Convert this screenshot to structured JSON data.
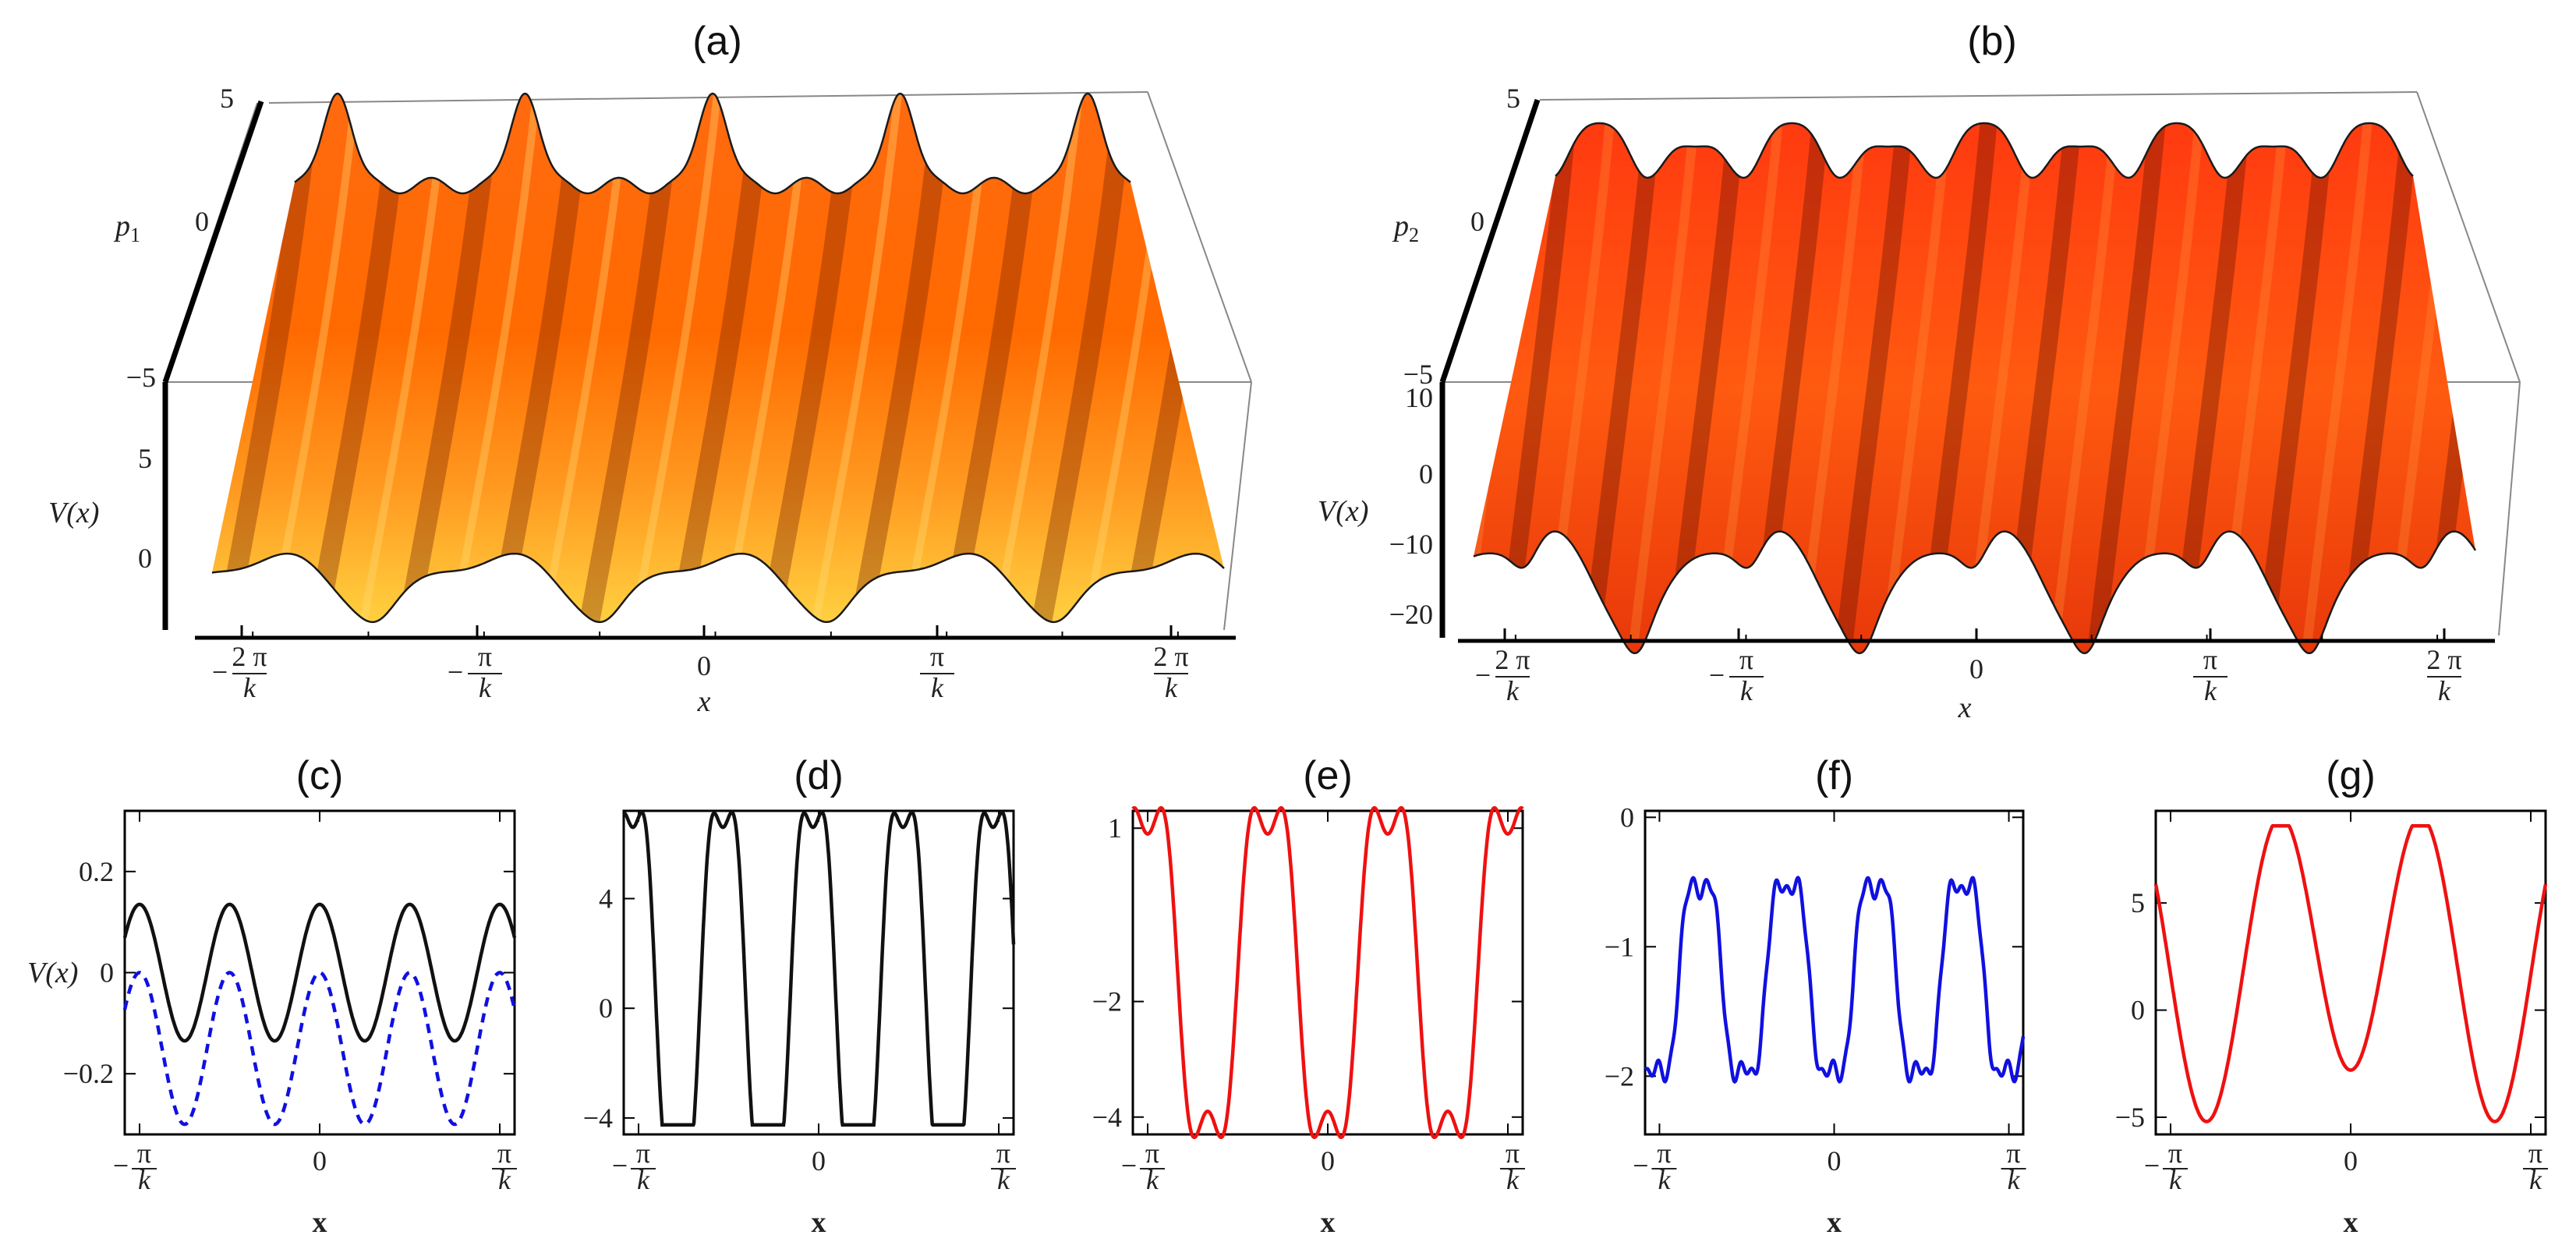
{
  "colors": {
    "black": "#111111",
    "blue": "#1010e0",
    "red": "#ee1111",
    "surface_dark": "#7a2400",
    "surface_mid": "#ff5a00",
    "surface_light": "#ffc030"
  },
  "chart_data": [
    {
      "panel": "(a)",
      "type": "surface",
      "p_axis_label": "p",
      "p_axis_sub": "1",
      "p_ticks": [
        "5",
        "0",
        "−5"
      ],
      "v_axis_label": "V(x)",
      "v_ticks": [
        "5",
        "0"
      ],
      "x_axis_label": "x",
      "x_ticks": [
        {
          "num": "− 2 π",
          "den": "k"
        },
        {
          "num": "− π",
          "den": "k"
        },
        {
          "num": "0",
          "den": ""
        },
        {
          "num": "π",
          "den": "k"
        },
        {
          "num": "2 π",
          "den": "k"
        }
      ]
    },
    {
      "panel": "(b)",
      "type": "surface",
      "p_axis_label": "p",
      "p_axis_sub": "2",
      "p_ticks": [
        "5",
        "0",
        "−5"
      ],
      "v_axis_label": "V(x)",
      "v_ticks": [
        "10",
        "0",
        "−10",
        "−20"
      ],
      "x_axis_label": "x",
      "x_ticks": [
        {
          "num": "− 2 π",
          "den": "k"
        },
        {
          "num": "− π",
          "den": "k"
        },
        {
          "num": "0",
          "den": ""
        },
        {
          "num": "π",
          "den": "k"
        },
        {
          "num": "2 π",
          "den": "k"
        }
      ]
    },
    {
      "panel": "(c)",
      "type": "line",
      "xlabel": "x",
      "ylabel": "V(x)",
      "xlim": [
        -3.4,
        3.4
      ],
      "ylim": [
        -0.32,
        0.32
      ],
      "y_ticks": [
        {
          "v": 0.2,
          "label": "0.2"
        },
        {
          "v": 0,
          "label": "0"
        },
        {
          "v": -0.2,
          "label": "−0.2"
        }
      ],
      "x_ticks": [
        {
          "v": -3.14159,
          "num": "− π",
          "den": "k"
        },
        {
          "v": 0,
          "num": "0",
          "den": ""
        },
        {
          "v": 3.14159,
          "num": "π",
          "den": "k"
        }
      ],
      "series": [
        {
          "name": "solid",
          "color": "black",
          "dashed": false,
          "offset": 0,
          "terms": [
            [
              0.135,
              4,
              0
            ]
          ],
          "clamp": null
        },
        {
          "name": "dashed",
          "color": "blue",
          "dashed": true,
          "offset": -0.15,
          "terms": [
            [
              0.15,
              4,
              0
            ]
          ],
          "clamp": null
        }
      ]
    },
    {
      "panel": "(d)",
      "type": "line",
      "xlabel": "x",
      "ylabel": "",
      "xlim": [
        -3.4,
        3.4
      ],
      "ylim": [
        -4.6,
        7.2
      ],
      "y_ticks": [
        {
          "v": 4,
          "label": "4"
        },
        {
          "v": 0,
          "label": "0"
        },
        {
          "v": -4,
          "label": "−4"
        }
      ],
      "x_ticks": [
        {
          "v": -3.14159,
          "num": "− π",
          "den": "k"
        },
        {
          "v": 0,
          "num": "0",
          "den": ""
        },
        {
          "v": 3.14159,
          "num": "π",
          "den": "k"
        }
      ],
      "series": [
        {
          "name": "solid",
          "color": "black",
          "dashed": false,
          "offset": 0.6,
          "terms": [
            [
              7.5,
              4,
              0.39
            ],
            [
              -1.5,
              12,
              1.18
            ]
          ],
          "clamp": [
            -4.25,
            99
          ]
        }
      ]
    },
    {
      "panel": "(e)",
      "type": "line",
      "xlabel": "x",
      "ylabel": "",
      "xlim": [
        -3.4,
        3.4
      ],
      "ylim": [
        -4.3,
        1.3
      ],
      "y_ticks": [
        {
          "v": 1,
          "label": "1"
        },
        {
          "v": -2,
          "label": "−2"
        },
        {
          "v": -4,
          "label": "−4"
        }
      ],
      "x_ticks": [
        {
          "v": -3.14159,
          "num": "− π",
          "den": "k"
        },
        {
          "v": 0,
          "num": "0",
          "den": ""
        },
        {
          "v": 3.14159,
          "num": "π",
          "den": "k"
        }
      ],
      "series": [
        {
          "name": "solid",
          "color": "red",
          "dashed": false,
          "offset": -1.5,
          "terms": [
            [
              -3.2,
              3,
              0
            ],
            [
              0.8,
              9,
              0
            ]
          ],
          "clamp": null
        }
      ]
    },
    {
      "panel": "(f)",
      "type": "line",
      "xlabel": "x",
      "ylabel": "",
      "xlim": [
        -3.4,
        3.4
      ],
      "ylim": [
        -2.45,
        0.05
      ],
      "y_ticks": [
        {
          "v": 0,
          "label": "0"
        },
        {
          "v": -1,
          "label": "−1"
        },
        {
          "v": -2,
          "label": "−2"
        }
      ],
      "x_ticks": [
        {
          "v": -3.14159,
          "num": "− π",
          "den": "k"
        },
        {
          "v": 0,
          "num": "0",
          "den": ""
        },
        {
          "v": 3.14159,
          "num": "π",
          "den": "k"
        }
      ],
      "series": [
        {
          "name": "solid",
          "color": "blue",
          "dashed": false,
          "offset": -1.25,
          "terms": [
            [
              -0.85,
              4,
              0.2
            ],
            [
              0.18,
              12,
              0.6
            ],
            [
              0.05,
              30,
              0.3
            ]
          ],
          "clamp": null
        }
      ]
    },
    {
      "panel": "(g)",
      "type": "line",
      "xlabel": "x",
      "ylabel": "",
      "xlim": [
        -3.4,
        3.4
      ],
      "ylim": [
        -5.8,
        9.3
      ],
      "y_ticks": [
        {
          "v": 5,
          "label": "5"
        },
        {
          "v": 0,
          "label": "0"
        },
        {
          "v": -5,
          "label": "−5"
        }
      ],
      "x_ticks": [
        {
          "v": -3.14159,
          "num": "− π",
          "den": "k"
        },
        {
          "v": 0,
          "num": "0",
          "den": ""
        },
        {
          "v": 3.14159,
          "num": "π",
          "den": "k"
        }
      ],
      "series": [
        {
          "name": "solid",
          "color": "red",
          "dashed": false,
          "offset": 2.5,
          "terms": [
            [
              -6.5,
              2.5,
              0
            ],
            [
              1.2,
              1.25,
              0
            ]
          ],
          "clamp": [
            -5.3,
            8.6
          ]
        }
      ]
    }
  ]
}
